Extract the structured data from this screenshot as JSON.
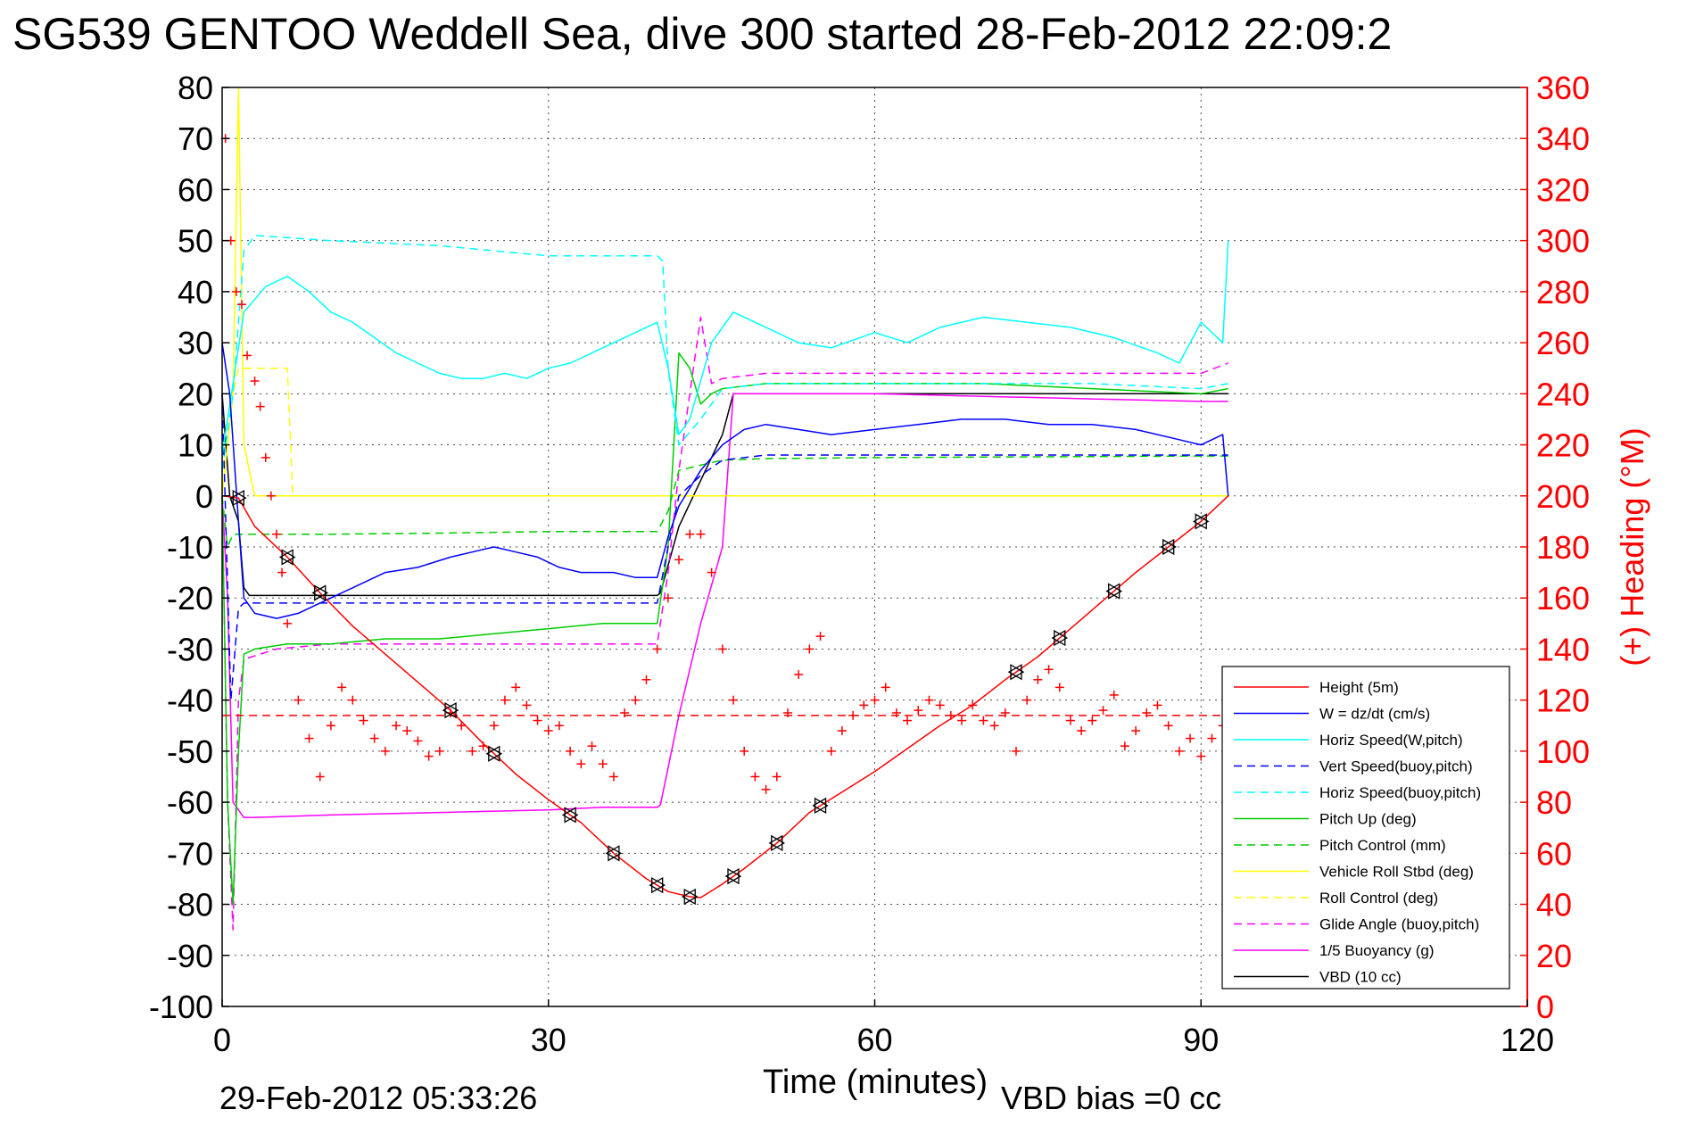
{
  "chart_data": {
    "type": "line",
    "title": "SG539 GENTOO Weddell Sea, dive 300 started 28-Feb-2012 22:09:2",
    "xlabel": "Time (minutes)",
    "ylabel_right": "(+) Heading (°M)",
    "footer_left": "29-Feb-2012 05:33:26",
    "footer_right": "VBD bias =0 cc",
    "xlim": [
      0,
      120
    ],
    "ylim": [
      -100,
      80
    ],
    "ylim_right": [
      0,
      360
    ],
    "xticks": [
      "0",
      "30",
      "60",
      "90",
      "120"
    ],
    "yticks": [
      "80",
      "70",
      "60",
      "50",
      "40",
      "30",
      "20",
      "10",
      "0",
      "-10",
      "-20",
      "-30",
      "-40",
      "-50",
      "-60",
      "-70",
      "-80",
      "-90",
      "-100"
    ],
    "yticks_right": [
      "360",
      "340",
      "320",
      "300",
      "280",
      "260",
      "240",
      "220",
      "200",
      "180",
      "160",
      "140",
      "120",
      "100",
      "80",
      "60",
      "40",
      "20",
      "0"
    ],
    "grid": true,
    "legend_position": "bottom-right",
    "series": [
      {
        "name": "Height (5m)",
        "color": "#ff0000",
        "style": "solid",
        "x": [
          0,
          1.5,
          3,
          6,
          9,
          12,
          15,
          18,
          21,
          24,
          27,
          30,
          33,
          36,
          39,
          41,
          43,
          44,
          46,
          48,
          51,
          54,
          57,
          60,
          63,
          66,
          69,
          72,
          75,
          78,
          81,
          84,
          87,
          90,
          92.5
        ],
        "y": [
          0,
          -0.4,
          -6,
          -12,
          -19,
          -25.5,
          -31,
          -36.5,
          -42,
          -48.5,
          -54.5,
          -59.5,
          -64,
          -70,
          -75,
          -77.5,
          -78.5,
          -78.7,
          -76,
          -73,
          -68,
          -62,
          -58,
          -54,
          -49.5,
          -45,
          -41,
          -36,
          -31.5,
          -26,
          -20.5,
          -15,
          -10,
          -5,
          0
        ]
      },
      {
        "name": "W = dz/dt (cm/s)",
        "color": "#0000ff",
        "style": "solid",
        "x": [
          0,
          0.7,
          1.5,
          2,
          3,
          5,
          7,
          9,
          12,
          15,
          18,
          21,
          23,
          25,
          27,
          29,
          31,
          33,
          36,
          38,
          40,
          41,
          42,
          44,
          46,
          48,
          50,
          53,
          56,
          60,
          64,
          68,
          72,
          76,
          80,
          84,
          88,
          90,
          92,
          92.5
        ],
        "y": [
          30,
          20,
          -5,
          -20,
          -23,
          -24,
          -23,
          -21,
          -18,
          -15,
          -14,
          -12,
          -11,
          -10,
          -11,
          -12,
          -14,
          -15,
          -15,
          -16,
          -16,
          -8,
          -2,
          5,
          10,
          13,
          14,
          13,
          12,
          13,
          14,
          15,
          15,
          14,
          14,
          13,
          11,
          10,
          12,
          0
        ]
      },
      {
        "name": "Horiz Speed(W,pitch)",
        "color": "#00ffff",
        "style": "solid",
        "x": [
          0,
          1,
          2,
          4,
          6,
          8,
          10,
          12,
          14,
          16,
          18,
          20,
          22,
          24,
          26,
          28,
          30,
          32,
          34,
          36,
          38,
          40,
          41,
          42,
          43,
          45,
          47,
          50,
          53,
          56,
          60,
          63,
          66,
          70,
          74,
          78,
          82,
          86,
          88,
          90,
          92,
          92.5
        ],
        "y": [
          8,
          22,
          36,
          41,
          43,
          40,
          36,
          34,
          31,
          28,
          26,
          24,
          23,
          23,
          24,
          23,
          25,
          26,
          28,
          30,
          32,
          34,
          25,
          12,
          15,
          30,
          36,
          33,
          30,
          29,
          32,
          30,
          33,
          35,
          34,
          33,
          31,
          28,
          26,
          34,
          30,
          50
        ]
      },
      {
        "name": "Vert Speed(buoy,pitch)",
        "color": "#0000ff",
        "style": "dashed",
        "x": [
          0,
          0.8,
          1.5,
          2,
          5,
          10,
          15,
          20,
          25,
          30,
          35,
          40,
          41,
          42,
          44,
          46,
          50,
          60,
          70,
          80,
          90,
          92.5
        ],
        "y": [
          20,
          -40,
          -22,
          -21,
          -21,
          -21,
          -21,
          -21,
          -21,
          -21,
          -21,
          -21,
          -10,
          0,
          4,
          7,
          8,
          8,
          8,
          8,
          8,
          8
        ]
      },
      {
        "name": "Horiz Speed(buoy,pitch)",
        "color": "#00ffff",
        "style": "dashed",
        "x": [
          0,
          1,
          2,
          3,
          10,
          20,
          30,
          40,
          40.5,
          41,
          42,
          44,
          46,
          50,
          60,
          70,
          80,
          90,
          92.5
        ],
        "y": [
          5,
          20,
          48,
          51,
          50,
          49,
          47,
          47,
          46,
          25,
          10,
          15,
          21,
          22,
          22,
          22,
          22,
          21,
          22
        ]
      },
      {
        "name": "Pitch Up (deg)",
        "color": "#00cc00",
        "style": "solid",
        "x": [
          0,
          0.5,
          1,
          1.5,
          2,
          3,
          6,
          10,
          15,
          20,
          25,
          30,
          35,
          40,
          41,
          42,
          43,
          44,
          45,
          46,
          50,
          60,
          70,
          80,
          90,
          92.5
        ],
        "y": [
          0,
          -60,
          -80,
          -50,
          -31,
          -30,
          -29,
          -29,
          -28,
          -28,
          -27,
          -26,
          -25,
          -25,
          -10,
          28,
          25,
          18,
          20,
          21,
          22,
          22,
          22,
          21,
          20,
          21
        ]
      },
      {
        "name": "Pitch Control (mm)",
        "color": "#00cc00",
        "style": "dashed",
        "x": [
          0,
          0.5,
          1,
          1.5,
          2,
          10,
          20,
          30,
          40,
          41,
          42,
          44,
          46,
          50,
          60,
          70,
          80,
          90,
          92.5
        ],
        "y": [
          0,
          -10,
          -7.5,
          -7.5,
          -7.5,
          -7.5,
          -7.3,
          -7,
          -7,
          -3,
          5,
          6,
          7,
          7.3,
          7.5,
          7.6,
          7.7,
          7.8,
          7.8
        ]
      },
      {
        "name": "Vehicle Roll Stbd (deg)",
        "color": "#ffff00",
        "style": "solid",
        "x": [
          0,
          1,
          1.5,
          2,
          3,
          5,
          10,
          15,
          20,
          25,
          30,
          35,
          40,
          41,
          42,
          43,
          45,
          50,
          55,
          60,
          65,
          70,
          75,
          80,
          85,
          88,
          90,
          92.5
        ],
        "y": [
          0,
          20,
          80,
          10,
          0,
          0,
          0,
          0,
          0,
          0,
          0,
          0,
          0,
          0,
          0,
          0,
          0,
          0,
          0,
          0,
          0,
          0,
          0,
          0,
          0,
          0,
          0,
          0
        ]
      },
      {
        "name": "Roll Control (deg)",
        "color": "#ffff00",
        "style": "dashed",
        "x": [
          0,
          1,
          1.5,
          2,
          4,
          6,
          6.5,
          7,
          20,
          40,
          41,
          42,
          50,
          60,
          70,
          80,
          88,
          90,
          92.5
        ],
        "y": [
          0,
          20,
          25,
          25,
          25,
          25,
          0,
          0,
          0,
          0,
          0,
          0,
          0,
          0,
          0,
          0,
          0,
          0,
          0
        ]
      },
      {
        "name": "Glide Angle (buoy,pitch)",
        "color": "#ff00ff",
        "style": "dashed",
        "x": [
          0,
          0.5,
          1,
          1.5,
          2,
          5,
          10,
          20,
          30,
          40,
          41,
          42,
          44,
          45,
          46,
          50,
          60,
          70,
          80,
          90,
          92.5
        ],
        "y": [
          0,
          -60,
          -85,
          -40,
          -32,
          -30,
          -29,
          -29,
          -29,
          -29,
          -15,
          5,
          35,
          22,
          23,
          24,
          24,
          24,
          24,
          24,
          26
        ]
      },
      {
        "name": "1/5 Buoyancy (g)",
        "color": "#ff00ff",
        "style": "solid",
        "x": [
          0,
          0.5,
          1,
          2,
          3,
          10,
          20,
          30,
          35,
          40,
          40.3,
          42,
          44,
          46,
          47,
          50,
          60,
          70,
          80,
          90,
          92.5
        ],
        "y": [
          0,
          -20,
          -60,
          -63,
          -63,
          -62.5,
          -62,
          -61.5,
          -61,
          -61,
          -60.5,
          -43,
          -25,
          -10,
          20,
          20,
          20,
          19.5,
          19,
          18.5,
          18.5
        ]
      },
      {
        "name": "VBD (10 cc)",
        "color": "#000000",
        "style": "solid",
        "x": [
          0,
          0.7,
          1.5,
          2,
          2.5,
          10,
          20,
          30,
          40,
          40.3,
          42,
          44,
          46,
          47,
          50,
          60,
          70,
          80,
          90,
          92.5
        ],
        "y": [
          20,
          0,
          -5,
          -18,
          -19.5,
          -19.5,
          -19.5,
          -19.5,
          -19.5,
          -19,
          -6,
          3,
          12,
          20,
          20,
          20,
          20,
          20,
          20,
          20
        ]
      }
    ],
    "heading_series": {
      "name": "(+) Heading (°M)",
      "color": "#ff0000",
      "marker": "+",
      "axis": "right",
      "x": [
        0.3,
        0.8,
        1.3,
        1.8,
        2.3,
        3,
        3.5,
        4,
        4.5,
        5,
        5.5,
        6,
        7,
        8,
        9,
        10,
        11,
        12,
        13,
        14,
        15,
        16,
        17,
        18,
        19,
        20,
        21,
        22,
        23,
        24,
        25,
        26,
        27,
        28,
        29,
        30,
        31,
        32,
        33,
        34,
        35,
        36,
        37,
        38,
        39,
        40,
        41,
        42,
        43,
        44,
        45,
        46,
        47,
        48,
        49,
        50,
        51,
        52,
        53,
        54,
        55,
        56,
        57,
        58,
        59,
        60,
        61,
        62,
        63,
        64,
        65,
        66,
        67,
        68,
        69,
        70,
        71,
        72,
        73,
        74,
        75,
        76,
        77,
        78,
        79,
        80,
        81,
        82,
        83,
        84,
        85,
        86,
        87,
        88,
        89,
        90,
        91,
        92
      ],
      "y": [
        340,
        300,
        280,
        275,
        255,
        245,
        235,
        215,
        200,
        185,
        170,
        150,
        120,
        105,
        90,
        110,
        125,
        120,
        112,
        105,
        100,
        110,
        108,
        104,
        98,
        100,
        115,
        110,
        100,
        102,
        110,
        120,
        125,
        118,
        112,
        108,
        110,
        100,
        95,
        102,
        95,
        90,
        115,
        120,
        128,
        140,
        160,
        175,
        185,
        185,
        170,
        140,
        120,
        100,
        90,
        85,
        90,
        115,
        130,
        140,
        145,
        100,
        108,
        114,
        118,
        120,
        125,
        115,
        112,
        116,
        120,
        118,
        114,
        112,
        118,
        112,
        110,
        115,
        100,
        120,
        128,
        132,
        125,
        112,
        108,
        112,
        116,
        122,
        102,
        108,
        115,
        118,
        110,
        100,
        105,
        98,
        105,
        110
      ]
    },
    "heading_reference": {
      "value": 114,
      "color": "#ff0000",
      "style": "dashed",
      "axis": "right"
    }
  }
}
